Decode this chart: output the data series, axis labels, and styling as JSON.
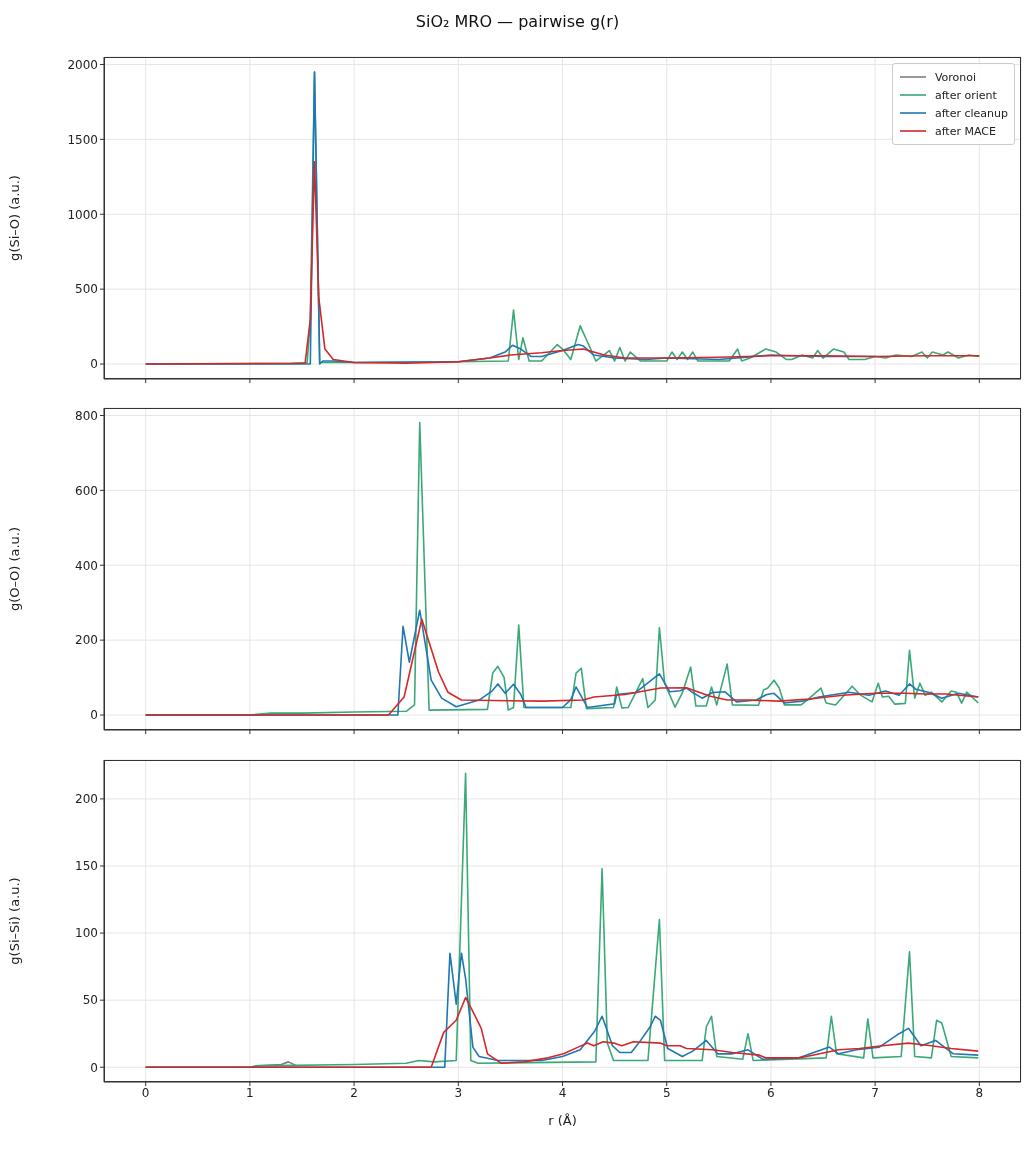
{
  "chart_data": [
    {
      "type": "line",
      "title": "SiO₂ MRO — pairwise g(r)",
      "ylabel": "g(Si–O) (a.u.)",
      "xlim": [
        -0.4,
        8.4
      ],
      "xticks": [
        0,
        1,
        2,
        3,
        4,
        5,
        6,
        7,
        8
      ],
      "ylim": [
        -100,
        2050
      ],
      "yticks": [
        0,
        500,
        1000,
        1500,
        2000
      ],
      "tick_labels": "y",
      "grid": true,
      "legend": "top right",
      "marker": "none",
      "line_style": "solid",
      "series": [
        {
          "name": "Voronoi",
          "color": "#7f7f7f"
        },
        {
          "name": "after orient",
          "color": "#3aa877",
          "x": [
            0,
            1.4,
            1.55,
            1.58,
            1.62,
            1.67,
            2,
            3,
            3.48,
            3.53,
            3.58,
            3.62,
            3.68,
            3.8,
            3.95,
            4.0,
            4.08,
            4.17,
            4.27,
            4.32,
            4.45,
            4.5,
            4.55,
            4.6,
            4.65,
            4.75,
            5.0,
            5.05,
            5.1,
            5.15,
            5.2,
            5.25,
            5.3,
            5.6,
            5.68,
            5.72,
            5.8,
            5.95,
            6.05,
            6.15,
            6.2,
            6.3,
            6.4,
            6.45,
            6.5,
            6.6,
            6.7,
            6.75,
            6.9,
            7.0,
            7.1,
            7.2,
            7.35,
            7.45,
            7.5,
            7.55,
            7.65,
            7.7,
            7.8,
            7.9,
            8.0
          ],
          "values": [
            0,
            5,
            10,
            300,
            1950,
            10,
            10,
            15,
            20,
            360,
            30,
            175,
            20,
            20,
            130,
            100,
            30,
            255,
            100,
            20,
            90,
            20,
            110,
            20,
            80,
            20,
            20,
            80,
            30,
            80,
            30,
            80,
            20,
            20,
            100,
            20,
            40,
            100,
            80,
            30,
            30,
            60,
            40,
            90,
            40,
            100,
            80,
            30,
            30,
            50,
            40,
            60,
            50,
            80,
            40,
            80,
            60,
            80,
            40,
            60,
            50
          ]
        },
        {
          "name": "after cleanup",
          "color": "#1f77b4",
          "x": [
            0,
            1.58,
            1.62,
            1.67,
            1.7,
            1.8,
            2,
            3,
            3.3,
            3.45,
            3.52,
            3.6,
            3.7,
            3.8,
            3.9,
            4.0,
            4.15,
            4.2,
            4.3,
            4.5,
            4.8,
            5.0,
            5.5,
            6.0,
            6.5,
            7.0
          ],
          "values": [
            0,
            0,
            1950,
            0,
            20,
            20,
            10,
            15,
            40,
            80,
            125,
            100,
            50,
            50,
            70,
            90,
            130,
            120,
            60,
            40,
            30,
            40,
            30,
            60,
            50,
            50
          ]
        },
        {
          "name": "after MACE",
          "color": "#d62728",
          "x": [
            0,
            1.53,
            1.58,
            1.62,
            1.66,
            1.72,
            1.8,
            2,
            2.5,
            3.0,
            3.3,
            3.5,
            3.8,
            4.0,
            4.2,
            4.4,
            4.6,
            5.0,
            5.5,
            6.0,
            6.5,
            7.0,
            7.5,
            8.0
          ],
          "values": [
            0,
            5,
            300,
            1350,
            450,
            100,
            30,
            10,
            5,
            15,
            40,
            60,
            75,
            90,
            100,
            60,
            40,
            40,
            45,
            55,
            55,
            50,
            55,
            55
          ]
        }
      ]
    },
    {
      "type": "line",
      "ylabel": "g(O–O) (a.u.)",
      "xlim": [
        -0.4,
        8.4
      ],
      "xticks": [
        0,
        1,
        2,
        3,
        4,
        5,
        6,
        7,
        8
      ],
      "ylim": [
        -40,
        820
      ],
      "yticks": [
        0,
        200,
        400,
        600,
        800
      ],
      "tick_labels": "y",
      "grid": true,
      "marker": "none",
      "line_style": "solid",
      "series": [
        {
          "color": "#3aa877",
          "x": [
            0,
            1.0,
            1.2,
            1.5,
            2.0,
            2.5,
            2.58,
            2.63,
            2.72,
            3.28,
            3.33,
            3.38,
            3.44,
            3.48,
            3.53,
            3.58,
            3.63,
            4.08,
            4.13,
            4.18,
            4.23,
            4.49,
            4.52,
            4.57,
            4.63,
            4.77,
            4.82,
            4.89,
            4.93,
            4.98,
            5.08,
            5.15,
            5.23,
            5.28,
            5.38,
            5.43,
            5.48,
            5.58,
            5.63,
            5.88,
            5.93,
            5.97,
            6.03,
            6.08,
            6.13,
            6.29,
            6.37,
            6.48,
            6.53,
            6.62,
            6.78,
            6.86,
            6.97,
            7.03,
            7.07,
            7.13,
            7.19,
            7.29,
            7.33,
            7.38,
            7.43,
            7.48,
            7.54,
            7.64,
            7.73,
            7.78,
            7.83,
            7.88,
            7.99
          ],
          "values": [
            0,
            0,
            5,
            5,
            8,
            10,
            27,
            781,
            13,
            15,
            112,
            130,
            100,
            13,
            20,
            240,
            20,
            20,
            112,
            125,
            17,
            20,
            75,
            19,
            20,
            97,
            20,
            40,
            233,
            85,
            21,
            59,
            128,
            24,
            24,
            75,
            27,
            136,
            27,
            26,
            67,
            72,
            93,
            72,
            27,
            27,
            45,
            72,
            32,
            27,
            77,
            53,
            35,
            85,
            48,
            50,
            29,
            31,
            173,
            45,
            85,
            53,
            61,
            35,
            64,
            61,
            32,
            61,
            32
          ]
        },
        {
          "color": "#1f77b4",
          "x": [
            0,
            2.42,
            2.47,
            2.53,
            2.63,
            2.74,
            2.84,
            2.98,
            3.2,
            3.32,
            3.38,
            3.45,
            3.53,
            3.6,
            3.65,
            4.0,
            4.08,
            4.13,
            4.24,
            4.5,
            4.52,
            4.7,
            4.93,
            5.03,
            5.13,
            5.19,
            5.25,
            5.34,
            5.44,
            5.56,
            5.67,
            5.86,
            5.96,
            6.03,
            6.13,
            6.3,
            6.46,
            6.75,
            6.94,
            7.1,
            7.23,
            7.33,
            7.39,
            7.51,
            7.64,
            7.8,
            7.99
          ],
          "values": [
            0,
            0,
            237,
            141,
            280,
            93,
            45,
            22,
            40,
            63,
            83,
            58,
            82,
            55,
            20,
            20,
            41,
            75,
            20,
            30,
            55,
            60,
            110,
            62,
            65,
            72,
            60,
            45,
            60,
            62,
            35,
            40,
            55,
            58,
            32,
            37,
            48,
            61,
            53,
            64,
            53,
            83,
            69,
            61,
            45,
            58,
            48
          ]
        },
        {
          "color": "#d62728",
          "x": [
            0,
            2.33,
            2.48,
            2.65,
            2.81,
            2.9,
            3.03,
            3.8,
            4.2,
            4.3,
            4.6,
            4.94,
            5.19,
            5.41,
            5.58,
            5.77,
            6.08,
            6.37,
            6.69,
            7.0,
            7.29,
            7.48,
            7.68,
            7.99
          ],
          "values": [
            0,
            0,
            48,
            256,
            115,
            61,
            40,
            37,
            40,
            48,
            55,
            72,
            73,
            51,
            40,
            40,
            37,
            43,
            53,
            58,
            58,
            56,
            56,
            48
          ]
        }
      ]
    },
    {
      "type": "line",
      "xlabel": "r (Å)",
      "ylabel": "g(Si–Si) (a.u.)",
      "xlim": [
        -0.4,
        8.4
      ],
      "xticks": [
        0,
        1,
        2,
        3,
        4,
        5,
        6,
        7,
        8
      ],
      "ylim": [
        -11,
        229
      ],
      "yticks": [
        0,
        50,
        100,
        150,
        200
      ],
      "grid": true,
      "marker": "none",
      "line_style": "solid",
      "series": [
        {
          "color": "#7f7f7f",
          "x": [
            1.05,
            1.3,
            1.37,
            1.45
          ],
          "values": [
            1,
            2,
            4,
            1
          ]
        },
        {
          "color": "#3aa877",
          "x": [
            0,
            1.0,
            1.05,
            2.0,
            2.5,
            2.62,
            2.77,
            2.98,
            3.07,
            3.12,
            3.19,
            4.32,
            4.38,
            4.43,
            4.49,
            4.82,
            4.93,
            4.98,
            5.34,
            5.38,
            5.43,
            5.48,
            5.73,
            5.78,
            5.83,
            6.53,
            6.58,
            6.63,
            6.89,
            6.93,
            6.98,
            7.25,
            7.33,
            7.38,
            7.54,
            7.59,
            7.64,
            7.73,
            7.99
          ],
          "values": [
            0,
            0,
            1,
            2,
            3,
            5,
            4,
            5,
            219,
            5,
            3,
            4,
            148,
            18,
            5,
            5,
            110,
            5,
            5,
            30,
            38,
            8,
            6,
            25,
            5,
            7,
            38,
            10,
            7,
            36,
            7,
            8,
            86,
            8,
            7,
            35,
            33,
            8,
            7
          ]
        },
        {
          "color": "#1f77b4",
          "x": [
            0,
            2.87,
            2.92,
            2.98,
            3.03,
            3.07,
            3.14,
            3.2,
            3.38,
            3.8,
            4.0,
            4.17,
            4.31,
            4.38,
            4.48,
            4.55,
            4.66,
            4.75,
            4.84,
            4.89,
            4.94,
            5.01,
            5.15,
            5.25,
            5.38,
            5.49,
            5.63,
            5.78,
            5.92,
            6.27,
            6.56,
            6.65,
            6.82,
            7.04,
            7.23,
            7.32,
            7.44,
            7.58,
            7.75,
            7.99
          ],
          "values": [
            0,
            0,
            85,
            47,
            85,
            66,
            15,
            8,
            5,
            5,
            8,
            13,
            27,
            38,
            16,
            11,
            11,
            20,
            30,
            38,
            35,
            14,
            8,
            12,
            20,
            10,
            10,
            13,
            6,
            7,
            15,
            10,
            13,
            15,
            25,
            29,
            16,
            20,
            10,
            9
          ]
        },
        {
          "color": "#d62728",
          "x": [
            0,
            2.74,
            2.86,
            2.98,
            3.07,
            3.15,
            3.22,
            3.28,
            3.41,
            3.63,
            3.86,
            4.01,
            4.15,
            4.24,
            4.3,
            4.39,
            4.49,
            4.57,
            4.68,
            4.94,
            5.0,
            5.13,
            5.19,
            5.44,
            5.63,
            5.89,
            5.95,
            6.27,
            6.4,
            6.65,
            6.85,
            7.07,
            7.32,
            7.54,
            7.73,
            7.99
          ],
          "values": [
            0,
            0,
            26,
            35,
            52,
            40,
            29,
            10,
            3,
            4,
            7,
            10,
            15,
            18,
            16,
            19,
            18,
            16,
            19,
            18,
            16,
            16,
            14,
            13,
            11,
            9,
            7,
            7,
            9,
            13,
            14,
            16,
            18,
            16,
            14,
            12
          ]
        }
      ]
    }
  ]
}
